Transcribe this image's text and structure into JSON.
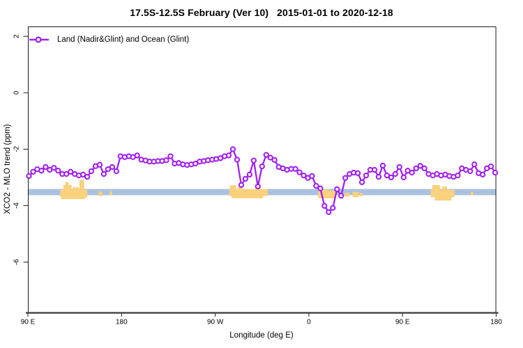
{
  "title": "17.5S-12.5S February (Ver 10)   2015-01-01 to 2020-12-18",
  "legend": {
    "label": "Land (Nadir&Glint) and Ocean (Glint)"
  },
  "axes": {
    "x_label": "Longitude (deg E)",
    "y_label": "XCO2 - MLO trend (ppm)",
    "x_tick_values": [
      90,
      180,
      270,
      360,
      450,
      540
    ],
    "x_tick_labels": [
      "90 E",
      "180",
      "90 W",
      "0",
      "90 E",
      "180"
    ],
    "y_tick_values": [
      2,
      0,
      -2,
      -4,
      -6
    ],
    "y_tick_labels": [
      "2",
      "0",
      "-2",
      "-4",
      "-6"
    ],
    "xlim": [
      90,
      540
    ],
    "ylim": [
      -7.8,
      2.35
    ],
    "note": "x axis is longitude wrapped: 90E through 180, 90W, 0, back to 90E and 180"
  },
  "colors": {
    "series": "#A020F0",
    "marker_fill": "#ffffff",
    "ocean_band": "#ABC1DF",
    "land": "#FAD17C",
    "axis_heavy": "#4a4a4a",
    "box": "#1a1a1a"
  },
  "chart_data": {
    "type": "line",
    "title": "17.5S-12.5S February (Ver 10)   2015-01-01 to 2020-12-18",
    "xlabel": "Longitude (deg E)",
    "ylabel": "XCO2 - MLO trend (ppm)",
    "xlim": [
      90,
      540
    ],
    "ylim": [
      -7.8,
      2.35
    ],
    "legend_position": "top-left",
    "grid": false,
    "series": [
      {
        "name": "Land (Nadir&Glint) and Ocean (Glint)",
        "marker": "open-circle",
        "color": "#A020F0",
        "x": [
          91,
          95,
          99,
          103,
          107,
          111,
          115,
          119,
          123,
          127,
          131,
          135,
          139,
          143,
          147,
          151,
          155,
          159,
          163,
          167,
          171,
          175,
          179,
          183,
          187,
          191,
          195,
          199,
          203,
          207,
          211,
          215,
          219,
          223,
          227,
          231,
          235,
          239,
          243,
          247,
          251,
          255,
          259,
          263,
          267,
          271,
          275,
          279,
          283,
          287,
          291,
          295,
          299,
          303,
          307,
          311,
          315,
          319,
          323,
          327,
          331,
          335,
          339,
          343,
          347,
          351,
          355,
          359,
          363,
          367,
          371,
          375,
          379,
          383,
          387,
          391,
          395,
          399,
          403,
          407,
          411,
          415,
          419,
          423,
          427,
          431,
          435,
          439,
          443,
          447,
          451,
          455,
          459,
          463,
          467,
          471,
          475,
          479,
          483,
          487,
          491,
          495,
          499,
          503,
          507,
          511,
          515,
          519,
          523,
          527,
          531,
          535,
          539
        ],
        "y": [
          -2.95,
          -2.8,
          -2.71,
          -2.76,
          -2.63,
          -2.73,
          -2.66,
          -2.76,
          -2.88,
          -2.88,
          -2.8,
          -2.88,
          -2.93,
          -2.9,
          -2.98,
          -2.78,
          -2.6,
          -2.55,
          -2.88,
          -2.71,
          -2.63,
          -2.78,
          -2.25,
          -2.28,
          -2.25,
          -2.28,
          -2.22,
          -2.37,
          -2.4,
          -2.44,
          -2.44,
          -2.42,
          -2.42,
          -2.39,
          -2.25,
          -2.51,
          -2.49,
          -2.54,
          -2.56,
          -2.54,
          -2.51,
          -2.44,
          -2.42,
          -2.39,
          -2.37,
          -2.35,
          -2.32,
          -2.25,
          -2.22,
          -2.0,
          -2.37,
          -3.27,
          -3.05,
          -2.9,
          -2.4,
          -3.32,
          -2.61,
          -2.2,
          -2.3,
          -2.38,
          -2.63,
          -2.68,
          -2.73,
          -2.7,
          -2.7,
          -2.82,
          -2.93,
          -3.02,
          -2.95,
          -3.3,
          -3.39,
          -4.01,
          -4.23,
          -4.08,
          -3.42,
          -3.65,
          -3.02,
          -2.88,
          -2.83,
          -2.85,
          -3.17,
          -2.93,
          -2.73,
          -2.73,
          -2.98,
          -2.58,
          -2.93,
          -3.0,
          -2.88,
          -2.63,
          -3.0,
          -2.76,
          -2.83,
          -2.68,
          -2.59,
          -2.68,
          -2.88,
          -2.93,
          -2.88,
          -2.93,
          -2.9,
          -2.95,
          -2.98,
          -2.93,
          -2.68,
          -2.73,
          -2.78,
          -2.54,
          -2.85,
          -2.9,
          -2.68,
          -2.61,
          -2.83
        ]
      }
    ],
    "ocean_band": {
      "x_from": 90,
      "x_to": 540,
      "y_top": -3.41,
      "y_bottom": -3.63
    },
    "land_patches": [
      [
        121,
        147,
        -3.44,
        -3.71
      ],
      [
        124,
        132,
        -3.27,
        -3.5
      ],
      [
        126,
        129,
        -3.16,
        -3.45
      ],
      [
        133,
        139,
        -3.35,
        -3.55
      ],
      [
        139.5,
        144,
        -3.09,
        -3.62
      ],
      [
        122,
        145,
        -3.66,
        -3.77
      ],
      [
        158,
        161.5,
        -3.5,
        -3.66
      ],
      [
        168.5,
        171,
        -3.49,
        -3.62
      ],
      [
        283.5,
        320.5,
        -3.41,
        -3.66
      ],
      [
        284,
        290,
        -3.28,
        -3.5
      ],
      [
        291.5,
        296,
        -3.34,
        -3.5
      ],
      [
        286,
        316,
        -3.6,
        -3.74
      ],
      [
        369,
        386,
        -3.47,
        -3.74
      ],
      [
        370,
        379,
        -3.43,
        -3.6
      ],
      [
        394.5,
        399,
        -3.54,
        -3.68
      ],
      [
        402,
        408,
        -3.51,
        -3.7
      ],
      [
        409,
        411.5,
        -3.56,
        -3.67
      ],
      [
        477,
        500,
        -3.44,
        -3.7
      ],
      [
        478.5,
        486,
        -3.27,
        -3.5
      ],
      [
        488,
        492.5,
        -3.32,
        -3.5
      ],
      [
        481,
        497,
        -3.64,
        -3.82
      ],
      [
        515.5,
        518,
        -3.51,
        -3.63
      ]
    ]
  }
}
